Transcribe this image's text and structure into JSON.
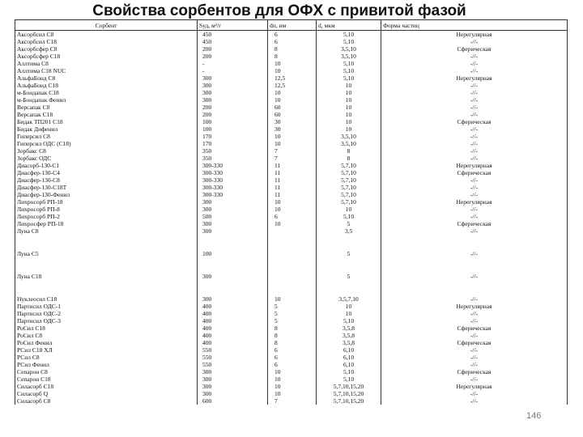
{
  "title": "Свойства сорбентов для ОФХ с привитой фазой",
  "page_number": "146",
  "table": {
    "header": [
      "Сорбент",
      "Sуд, м²/г",
      "dп, нм",
      "d, мкм",
      "Форма частиц"
    ],
    "rows": [
      [
        "Аксорбсил С8",
        "450",
        "6",
        "5,10",
        "Нерегулярная"
      ],
      [
        "Аксорбсил С18",
        "450",
        "6",
        "5,10",
        "-//-"
      ],
      [
        "Аксорбсфер С8",
        "200",
        "8",
        "3,5,10",
        "Сферическая"
      ],
      [
        "Аксорбсфер С18",
        "200",
        "8",
        "3,5,10",
        "-//-"
      ],
      [
        "Аллтима С8",
        "-",
        "10",
        "5,10",
        "-//-"
      ],
      [
        "Аллтима С18 NUC",
        "-",
        "10",
        "5,10",
        "-//-"
      ],
      [
        "АльфаБонд С8",
        "300",
        "12,5",
        "5,10",
        "Нерегулярная"
      ],
      [
        "АльфаБонд С18",
        "300",
        "12,5",
        "10",
        "-//-"
      ],
      [
        "м-Бондапак С18",
        "300",
        "10",
        "10",
        "-//-"
      ],
      [
        "м-Бондапак Фенил",
        "300",
        "10",
        "10",
        "-//-"
      ],
      [
        "Версапак С8",
        "200",
        "60",
        "10",
        "-//-"
      ],
      [
        "Версапак С18",
        "200",
        "60",
        "10",
        "-//-"
      ],
      [
        "Бидак ТП201 С18",
        "100",
        "30",
        "10",
        "Сферическая"
      ],
      [
        "Бидак Дифенил",
        "100",
        "30",
        "10",
        "-//-"
      ],
      [
        "Гиперсил С8",
        "170",
        "10",
        "3,5,10",
        "-//-"
      ],
      [
        "Гиперсил ОДС (С18)",
        "170",
        "10",
        "3,5,10",
        "-//-"
      ],
      [
        "Зорбакс С8",
        "350",
        "7",
        "8",
        "-//-"
      ],
      [
        "Зорбакс ОДС",
        "350",
        "7",
        "8",
        "-//-"
      ],
      [
        "Диасорб-130-С1",
        "300-330",
        "11",
        "5,7,10",
        "Нерегулярная"
      ],
      [
        "Диасфер-130-С4",
        "300-330",
        "11",
        "5,7,10",
        "Сферическая"
      ],
      [
        "Диасфер-130-С8",
        "300-330",
        "11",
        "5,7,10",
        "-//-"
      ],
      [
        "Диасфер-130-С18Т",
        "300-330",
        "11",
        "5,7,10",
        "-//-"
      ],
      [
        "Диасфер-130-Фенил",
        "300-330",
        "11",
        "5,7,10",
        "-//-"
      ],
      [
        "Лихросорб РП-18",
        "300",
        "10",
        "5,7,10",
        "Нерегулярная"
      ],
      [
        "Лихросорб РП-8",
        "300",
        "10",
        "10",
        "-//-"
      ],
      [
        "Лихросорб РП-2",
        "500",
        "6",
        "5,10",
        "-//-"
      ],
      [
        "Лихросфер РП-18",
        "300",
        "10",
        "5",
        "Сферическая"
      ],
      [
        "Луна С8",
        "300",
        null,
        "3,5",
        "-//-"
      ],
      [
        "Луна С5",
        "100",
        null,
        "5",
        "-//-"
      ],
      [
        "Луна С18",
        "300",
        null,
        "5",
        "-//-"
      ],
      [
        "Нуклеосил С18",
        "300",
        "10",
        "3,5,7,10",
        "-//-"
      ],
      [
        "Партисил ОДС-1",
        "400",
        "5",
        "10",
        "Нерегулярная"
      ],
      [
        "Партисил ОДС-2",
        "400",
        "5",
        "10",
        "-//-"
      ],
      [
        "Партисил ОДС-3",
        "400",
        "5",
        "5,10",
        "-//-"
      ],
      [
        "РоСил С18",
        "400",
        "8",
        "3,5,8",
        "Сферическая"
      ],
      [
        "РоСил С8",
        "400",
        "8",
        "3,5,8",
        "-//-"
      ],
      [
        "РоСил Фенил",
        "400",
        "8",
        "3,5,8",
        "Сферическая"
      ],
      [
        "РСил С18 ХЛ",
        "550",
        "6",
        "6,10",
        "-//-"
      ],
      [
        "РСил С8",
        "550",
        "6",
        "6,10",
        "-//-"
      ],
      [
        "РСил Фенил",
        "550",
        "6",
        "6,10",
        "-//-"
      ],
      [
        "Сепарон С8",
        "300",
        "10",
        "5,10",
        "Сферическая"
      ],
      [
        "Сепарон С18",
        "300",
        "10",
        "5,10",
        "-//-"
      ],
      [
        "Силасорб С18",
        "300",
        "10",
        "5,7,10,15,20",
        "Нерегулярная"
      ],
      [
        "Силасорб Q",
        "300",
        "10",
        "5,7,10,15,20",
        "-//-"
      ],
      [
        "Силасорб С8",
        "600",
        "7",
        "5,7,10,15,20",
        "-//-"
      ]
    ]
  }
}
